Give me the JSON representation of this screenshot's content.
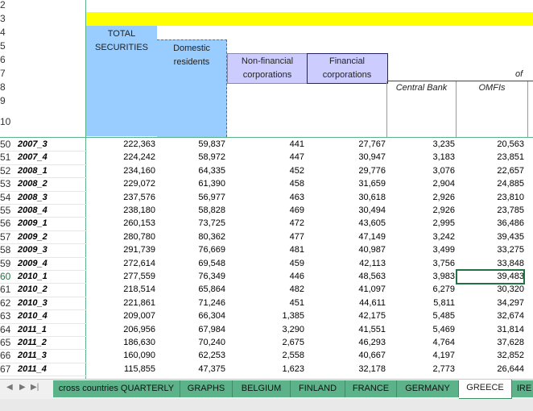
{
  "header_rows": [
    "2",
    "3",
    "4",
    "5",
    "6",
    "7",
    "8",
    "9",
    "10"
  ],
  "columns": {
    "total": "TOTAL SECURITIES",
    "domestic": "Domestic residents",
    "nonfinancial": "Non-financial corporations",
    "financial": "Financial corporations",
    "of": "of",
    "central_bank": "Central Bank",
    "omfis": "OMFIs"
  },
  "rows": [
    {
      "num": "50",
      "label": "2007_3",
      "total": "222,363",
      "domestic": "59,837",
      "nonfin": "441",
      "fin": "27,767",
      "cb": "3,235",
      "omfi": "20,563"
    },
    {
      "num": "51",
      "label": "2007_4",
      "total": "224,242",
      "domestic": "58,972",
      "nonfin": "447",
      "fin": "30,947",
      "cb": "3,183",
      "omfi": "23,851"
    },
    {
      "num": "52",
      "label": "2008_1",
      "total": "234,160",
      "domestic": "64,335",
      "nonfin": "452",
      "fin": "29,776",
      "cb": "3,076",
      "omfi": "22,657"
    },
    {
      "num": "53",
      "label": "2008_2",
      "total": "229,072",
      "domestic": "61,390",
      "nonfin": "458",
      "fin": "31,659",
      "cb": "2,904",
      "omfi": "24,885"
    },
    {
      "num": "54",
      "label": "2008_3",
      "total": "237,576",
      "domestic": "56,977",
      "nonfin": "463",
      "fin": "30,618",
      "cb": "2,926",
      "omfi": "23,810"
    },
    {
      "num": "55",
      "label": "2008_4",
      "total": "238,180",
      "domestic": "58,828",
      "nonfin": "469",
      "fin": "30,494",
      "cb": "2,926",
      "omfi": "23,785"
    },
    {
      "num": "56",
      "label": "2009_1",
      "total": "260,153",
      "domestic": "73,725",
      "nonfin": "472",
      "fin": "43,605",
      "cb": "2,995",
      "omfi": "36,486"
    },
    {
      "num": "57",
      "label": "2009_2",
      "total": "280,780",
      "domestic": "80,362",
      "nonfin": "477",
      "fin": "47,149",
      "cb": "3,242",
      "omfi": "39,435"
    },
    {
      "num": "58",
      "label": "2009_3",
      "total": "291,739",
      "domestic": "76,669",
      "nonfin": "481",
      "fin": "40,987",
      "cb": "3,499",
      "omfi": "33,275"
    },
    {
      "num": "59",
      "label": "2009_4",
      "total": "272,614",
      "domestic": "69,548",
      "nonfin": "459",
      "fin": "42,113",
      "cb": "3,756",
      "omfi": "33,848"
    },
    {
      "num": "60",
      "label": "2010_1",
      "total": "277,559",
      "domestic": "76,349",
      "nonfin": "446",
      "fin": "48,563",
      "cb": "3,983",
      "omfi": "39,483"
    },
    {
      "num": "61",
      "label": "2010_2",
      "total": "218,514",
      "domestic": "65,864",
      "nonfin": "482",
      "fin": "41,097",
      "cb": "6,279",
      "omfi": "30,320"
    },
    {
      "num": "62",
      "label": "2010_3",
      "total": "221,861",
      "domestic": "71,246",
      "nonfin": "451",
      "fin": "44,611",
      "cb": "5,811",
      "omfi": "34,297"
    },
    {
      "num": "63",
      "label": "2010_4",
      "total": "209,007",
      "domestic": "66,304",
      "nonfin": "1,385",
      "fin": "42,175",
      "cb": "5,485",
      "omfi": "32,674"
    },
    {
      "num": "64",
      "label": "2011_1",
      "total": "206,956",
      "domestic": "67,984",
      "nonfin": "3,290",
      "fin": "41,551",
      "cb": "5,469",
      "omfi": "31,814"
    },
    {
      "num": "65",
      "label": "2011_2",
      "total": "186,630",
      "domestic": "70,240",
      "nonfin": "2,675",
      "fin": "46,293",
      "cb": "4,764",
      "omfi": "37,628"
    },
    {
      "num": "66",
      "label": "2011_3",
      "total": "160,090",
      "domestic": "62,253",
      "nonfin": "2,558",
      "fin": "40,667",
      "cb": "4,197",
      "omfi": "32,852"
    },
    {
      "num": "67",
      "label": "2011_4",
      "total": "115,855",
      "domestic": "47,375",
      "nonfin": "1,623",
      "fin": "32,178",
      "cb": "2,773",
      "omfi": "26,644"
    }
  ],
  "selected_row": "60",
  "sheet_tabs": [
    "cross countries QUARTERLY",
    "GRAPHS",
    "BELGIUM",
    "FINLAND",
    "FRANCE",
    "GERMANY",
    "GREECE",
    "IRE"
  ],
  "active_tab": "GREECE",
  "colors": {
    "yellow": "#ffff00",
    "total_blue": "#99ccff",
    "financial_purple": "#ccccff",
    "tab_green": "#5cb38a",
    "selection": "#217346"
  }
}
